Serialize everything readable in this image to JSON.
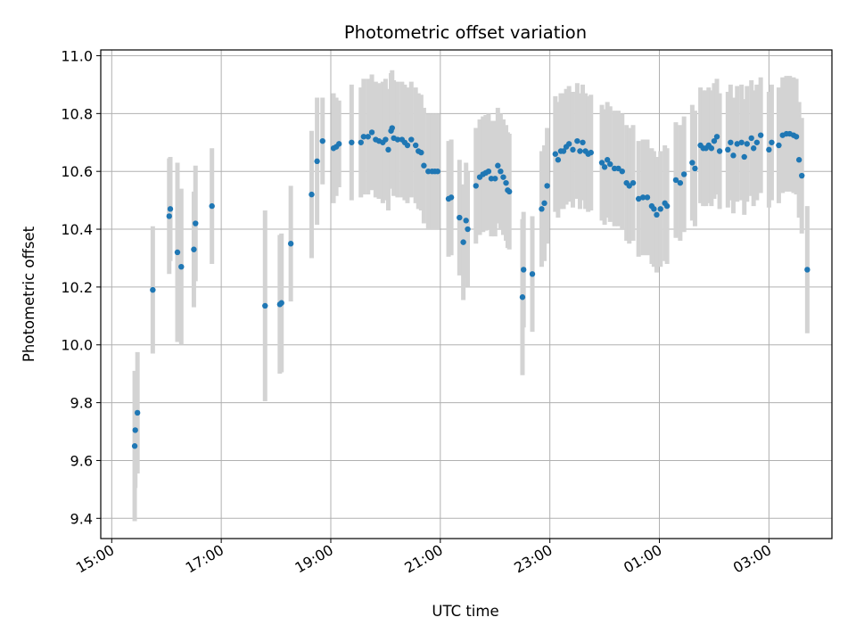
{
  "chart_data": {
    "type": "scatter",
    "title": "Photometric offset variation",
    "xlabel": "UTC time",
    "ylabel": "Photometric offset",
    "x_unit": "hours UTC (continuous; values above 24 are the next day)",
    "xlim": [
      14.8,
      28.15
    ],
    "ylim": [
      9.33,
      11.02
    ],
    "x_ticks": [
      {
        "value": 15,
        "label": "15:00"
      },
      {
        "value": 17,
        "label": "17:00"
      },
      {
        "value": 19,
        "label": "19:00"
      },
      {
        "value": 21,
        "label": "21:00"
      },
      {
        "value": 23,
        "label": "23:00"
      },
      {
        "value": 25,
        "label": "01:00"
      },
      {
        "value": 27,
        "label": "03:00"
      }
    ],
    "y_ticks": [
      {
        "value": 9.4,
        "label": "9.4"
      },
      {
        "value": 9.6,
        "label": "9.6"
      },
      {
        "value": 9.8,
        "label": "9.8"
      },
      {
        "value": 10.0,
        "label": "10.0"
      },
      {
        "value": 10.2,
        "label": "10.2"
      },
      {
        "value": 10.4,
        "label": "10.4"
      },
      {
        "value": 10.6,
        "label": "10.6"
      },
      {
        "value": 10.8,
        "label": "10.8"
      },
      {
        "value": 11.0,
        "label": "11.0"
      }
    ],
    "grid": true,
    "point_color": "#1f77b4",
    "errorbar_color": "#d3d3d3",
    "points": [
      [
        15.42,
        9.65,
        0.26
      ],
      [
        15.43,
        9.705,
        0.2
      ],
      [
        15.47,
        9.765,
        0.21
      ],
      [
        15.75,
        10.19,
        0.22
      ],
      [
        16.05,
        10.445,
        0.2
      ],
      [
        16.07,
        10.47,
        0.18
      ],
      [
        16.2,
        10.32,
        0.31
      ],
      [
        16.27,
        10.27,
        0.27
      ],
      [
        16.5,
        10.33,
        0.2
      ],
      [
        16.53,
        10.42,
        0.2
      ],
      [
        16.83,
        10.48,
        0.2
      ],
      [
        17.8,
        10.135,
        0.33
      ],
      [
        18.07,
        10.14,
        0.24
      ],
      [
        18.1,
        10.145,
        0.24
      ],
      [
        18.27,
        10.35,
        0.2
      ],
      [
        18.65,
        10.52,
        0.22
      ],
      [
        18.75,
        10.635,
        0.22
      ],
      [
        18.85,
        10.705,
        0.15
      ],
      [
        19.05,
        10.68,
        0.19
      ],
      [
        19.1,
        10.685,
        0.17
      ],
      [
        19.15,
        10.695,
        0.15
      ],
      [
        19.38,
        10.7,
        0.2
      ],
      [
        19.55,
        10.7,
        0.19
      ],
      [
        19.6,
        10.72,
        0.2
      ],
      [
        19.68,
        10.72,
        0.2
      ],
      [
        19.75,
        10.735,
        0.2
      ],
      [
        19.82,
        10.71,
        0.2
      ],
      [
        19.88,
        10.705,
        0.2
      ],
      [
        19.95,
        10.7,
        0.21
      ],
      [
        20.0,
        10.71,
        0.21
      ],
      [
        20.05,
        10.675,
        0.21
      ],
      [
        20.1,
        10.74,
        0.2
      ],
      [
        20.12,
        10.75,
        0.2
      ],
      [
        20.15,
        10.715,
        0.2
      ],
      [
        20.22,
        10.71,
        0.2
      ],
      [
        20.3,
        10.71,
        0.2
      ],
      [
        20.35,
        10.7,
        0.2
      ],
      [
        20.4,
        10.69,
        0.2
      ],
      [
        20.47,
        10.71,
        0.2
      ],
      [
        20.55,
        10.69,
        0.2
      ],
      [
        20.6,
        10.67,
        0.2
      ],
      [
        20.65,
        10.665,
        0.2
      ],
      [
        20.7,
        10.62,
        0.2
      ],
      [
        20.78,
        10.6,
        0.2
      ],
      [
        20.85,
        10.6,
        0.2
      ],
      [
        20.9,
        10.6,
        0.2
      ],
      [
        20.95,
        10.6,
        0.2
      ],
      [
        21.15,
        10.505,
        0.2
      ],
      [
        21.2,
        10.51,
        0.2
      ],
      [
        21.35,
        10.44,
        0.2
      ],
      [
        21.42,
        10.355,
        0.2
      ],
      [
        21.47,
        10.43,
        0.2
      ],
      [
        21.5,
        10.4,
        0.2
      ],
      [
        21.65,
        10.55,
        0.2
      ],
      [
        21.72,
        10.58,
        0.2
      ],
      [
        21.78,
        10.59,
        0.2
      ],
      [
        21.83,
        10.595,
        0.2
      ],
      [
        21.88,
        10.6,
        0.2
      ],
      [
        21.93,
        10.575,
        0.2
      ],
      [
        22.0,
        10.575,
        0.2
      ],
      [
        22.05,
        10.62,
        0.2
      ],
      [
        22.1,
        10.6,
        0.2
      ],
      [
        22.15,
        10.58,
        0.2
      ],
      [
        22.2,
        10.56,
        0.2
      ],
      [
        22.23,
        10.535,
        0.2
      ],
      [
        22.26,
        10.53,
        0.2
      ],
      [
        22.5,
        10.165,
        0.27
      ],
      [
        22.52,
        10.26,
        0.2
      ],
      [
        22.68,
        10.245,
        0.2
      ],
      [
        22.85,
        10.47,
        0.2
      ],
      [
        22.9,
        10.49,
        0.2
      ],
      [
        22.95,
        10.55,
        0.2
      ],
      [
        23.1,
        10.66,
        0.2
      ],
      [
        23.15,
        10.64,
        0.2
      ],
      [
        23.2,
        10.67,
        0.2
      ],
      [
        23.25,
        10.67,
        0.2
      ],
      [
        23.3,
        10.685,
        0.2
      ],
      [
        23.35,
        10.695,
        0.2
      ],
      [
        23.42,
        10.675,
        0.2
      ],
      [
        23.5,
        10.705,
        0.2
      ],
      [
        23.55,
        10.67,
        0.2
      ],
      [
        23.6,
        10.7,
        0.2
      ],
      [
        23.65,
        10.67,
        0.2
      ],
      [
        23.7,
        10.66,
        0.2
      ],
      [
        23.75,
        10.665,
        0.2
      ],
      [
        23.95,
        10.63,
        0.2
      ],
      [
        24.0,
        10.615,
        0.2
      ],
      [
        24.05,
        10.64,
        0.2
      ],
      [
        24.1,
        10.625,
        0.2
      ],
      [
        24.18,
        10.61,
        0.2
      ],
      [
        24.25,
        10.61,
        0.2
      ],
      [
        24.32,
        10.6,
        0.2
      ],
      [
        24.4,
        10.56,
        0.2
      ],
      [
        24.45,
        10.55,
        0.2
      ],
      [
        24.52,
        10.56,
        0.2
      ],
      [
        24.62,
        10.505,
        0.2
      ],
      [
        24.7,
        10.51,
        0.2
      ],
      [
        24.78,
        10.51,
        0.2
      ],
      [
        24.86,
        10.48,
        0.2
      ],
      [
        24.9,
        10.47,
        0.2
      ],
      [
        24.95,
        10.45,
        0.2
      ],
      [
        25.02,
        10.47,
        0.2
      ],
      [
        25.1,
        10.49,
        0.2
      ],
      [
        25.14,
        10.48,
        0.2
      ],
      [
        25.3,
        10.57,
        0.2
      ],
      [
        25.38,
        10.56,
        0.2
      ],
      [
        25.45,
        10.59,
        0.2
      ],
      [
        25.6,
        10.63,
        0.2
      ],
      [
        25.65,
        10.61,
        0.2
      ],
      [
        25.75,
        10.69,
        0.2
      ],
      [
        25.8,
        10.68,
        0.2
      ],
      [
        25.85,
        10.68,
        0.2
      ],
      [
        25.9,
        10.69,
        0.2
      ],
      [
        25.95,
        10.68,
        0.2
      ],
      [
        26.0,
        10.705,
        0.2
      ],
      [
        26.05,
        10.72,
        0.2
      ],
      [
        26.1,
        10.67,
        0.2
      ],
      [
        26.25,
        10.675,
        0.2
      ],
      [
        26.3,
        10.7,
        0.2
      ],
      [
        26.35,
        10.655,
        0.2
      ],
      [
        26.42,
        10.695,
        0.2
      ],
      [
        26.5,
        10.7,
        0.2
      ],
      [
        26.55,
        10.65,
        0.2
      ],
      [
        26.6,
        10.695,
        0.2
      ],
      [
        26.68,
        10.715,
        0.2
      ],
      [
        26.72,
        10.68,
        0.2
      ],
      [
        26.78,
        10.7,
        0.2
      ],
      [
        26.85,
        10.725,
        0.2
      ],
      [
        27.0,
        10.675,
        0.2
      ],
      [
        27.05,
        10.7,
        0.2
      ],
      [
        27.18,
        10.69,
        0.2
      ],
      [
        27.25,
        10.725,
        0.2
      ],
      [
        27.32,
        10.73,
        0.2
      ],
      [
        27.38,
        10.73,
        0.2
      ],
      [
        27.45,
        10.725,
        0.2
      ],
      [
        27.5,
        10.72,
        0.2
      ],
      [
        27.55,
        10.64,
        0.2
      ],
      [
        27.6,
        10.585,
        0.2
      ],
      [
        27.7,
        10.26,
        0.22
      ]
    ]
  }
}
